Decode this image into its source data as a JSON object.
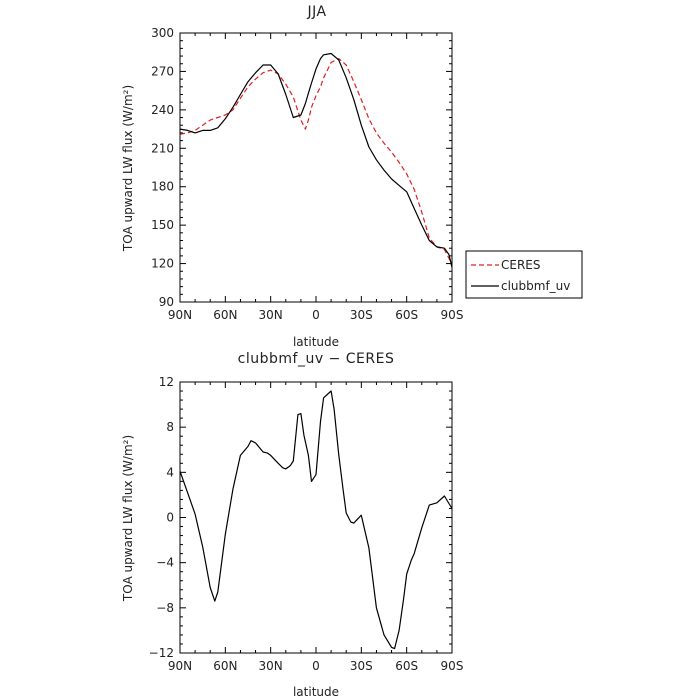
{
  "chart_data": [
    {
      "type": "line",
      "title": "JJA",
      "xlabel": "latitude",
      "ylabel": "TOA upward LW flux (W/m²)",
      "xlim": [
        90,
        -90
      ],
      "ylim": [
        90,
        300
      ],
      "yticks": [
        90,
        120,
        150,
        180,
        210,
        240,
        270,
        300
      ],
      "xticks": [
        90,
        60,
        30,
        0,
        -30,
        -60,
        -90
      ],
      "xticklabels": [
        "90N",
        "60N",
        "30N",
        "0",
        "30S",
        "60S",
        "90S"
      ],
      "legend": {
        "placement": "outside-right",
        "entries": [
          "CERES",
          "clubbmf_uv"
        ]
      },
      "series": [
        {
          "name": "CERES",
          "color": "#e02020",
          "dash": "dashed",
          "x": [
            90,
            85,
            80,
            75,
            70,
            65,
            60,
            55,
            50,
            45,
            40,
            35,
            30,
            25,
            20,
            15,
            10,
            7,
            5,
            3,
            0,
            -3,
            -5,
            -10,
            -15,
            -20,
            -25,
            -30,
            -35,
            -40,
            -45,
            -50,
            -55,
            -60,
            -65,
            -70,
            -75,
            -80,
            -85,
            -88,
            -90
          ],
          "y": [
            221,
            222,
            224,
            228,
            232,
            234,
            236,
            240,
            249,
            258,
            264,
            269,
            271,
            268,
            260,
            250,
            232,
            225,
            232,
            242,
            251,
            258,
            265,
            277,
            280,
            275,
            262,
            248,
            233,
            222,
            214,
            207,
            199,
            190,
            178,
            160,
            140,
            133,
            131,
            124,
            118
          ]
        },
        {
          "name": "clubbmf_uv",
          "color": "#000000",
          "dash": "solid",
          "x": [
            90,
            85,
            80,
            75,
            70,
            65,
            60,
            55,
            50,
            45,
            40,
            35,
            30,
            25,
            20,
            15,
            10,
            7,
            5,
            3,
            0,
            -3,
            -5,
            -10,
            -15,
            -20,
            -25,
            -30,
            -35,
            -40,
            -45,
            -50,
            -55,
            -60,
            -65,
            -70,
            -75,
            -80,
            -85,
            -88,
            -90
          ],
          "y": [
            225,
            224,
            222,
            224,
            224,
            226,
            233,
            242,
            252,
            262,
            269,
            275,
            275,
            268,
            252,
            234,
            236,
            245,
            253,
            261,
            272,
            280,
            283,
            284,
            279,
            265,
            248,
            228,
            211,
            201,
            193,
            186,
            181,
            176,
            163,
            150,
            138,
            133,
            132,
            127,
            117
          ]
        }
      ]
    },
    {
      "type": "line",
      "title": "clubbmf_uv − CERES",
      "xlabel": "latitude",
      "ylabel": "TOA upward LW flux (W/m²)",
      "xlim": [
        90,
        -90
      ],
      "ylim": [
        -12,
        12
      ],
      "yticks": [
        -12,
        -8,
        -4,
        0,
        4,
        8,
        12
      ],
      "xticks": [
        90,
        60,
        30,
        0,
        -30,
        -60,
        -90
      ],
      "xticklabels": [
        "90N",
        "60N",
        "30N",
        "0",
        "30S",
        "60S",
        "90S"
      ],
      "series": [
        {
          "color": "#000000",
          "dash": "solid",
          "x": [
            90,
            85,
            80,
            75,
            70,
            67,
            65,
            60,
            55,
            50,
            45,
            43,
            40,
            35,
            32,
            30,
            25,
            22,
            20,
            17,
            15,
            12,
            10,
            8,
            5,
            3,
            0,
            -3,
            -5,
            -10,
            -12,
            -15,
            -18,
            -20,
            -23,
            -25,
            -30,
            -35,
            -40,
            -45,
            -50,
            -52,
            -55,
            -58,
            -60,
            -63,
            -65,
            -70,
            -75,
            -80,
            -85,
            -90
          ],
          "y": [
            4.1,
            2.2,
            0.3,
            -2.6,
            -6.2,
            -7.4,
            -6.6,
            -1.5,
            2.5,
            5.5,
            6.3,
            6.8,
            6.6,
            5.8,
            5.7,
            5.5,
            4.8,
            4.4,
            4.3,
            4.6,
            5.0,
            9.1,
            9.2,
            7.3,
            5.5,
            3.2,
            3.8,
            8.5,
            10.6,
            11.2,
            9.6,
            5.6,
            2.4,
            0.4,
            -0.4,
            -0.5,
            0.2,
            -2.7,
            -8.0,
            -10.4,
            -11.5,
            -11.6,
            -10.0,
            -7.2,
            -5.0,
            -3.8,
            -3.2,
            -0.9,
            1.1,
            1.3,
            1.9,
            0.8
          ]
        }
      ]
    }
  ]
}
